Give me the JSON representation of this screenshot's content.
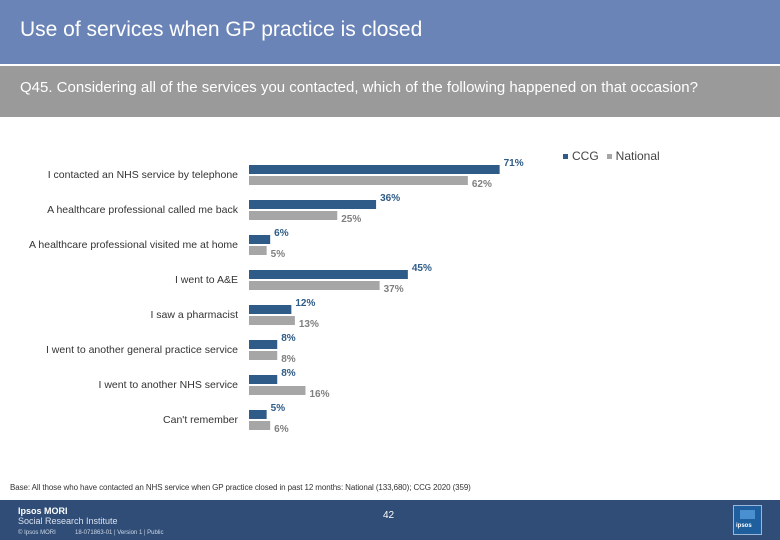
{
  "header": {
    "title": "Use of services when GP practice is closed",
    "question": "Q45. Considering all of the services you contacted, which of the following happened on that occasion?"
  },
  "legend": {
    "items": [
      {
        "label": "CCG",
        "color": "#2e5b87"
      },
      {
        "label": "National",
        "color": "#a6a6a6"
      }
    ]
  },
  "chart_data": {
    "type": "bar",
    "orientation": "horizontal",
    "categories": [
      "I contacted an NHS service by telephone",
      "A healthcare professional called me back",
      "A healthcare professional visited me at home",
      "I went to A&E",
      "I saw a pharmacist",
      "I went to another general practice service",
      "I  went to another NHS service",
      "Can't remember"
    ],
    "series": [
      {
        "name": "CCG",
        "color": "#2e5b87",
        "values": [
          71,
          36,
          6,
          45,
          12,
          8,
          8,
          5
        ]
      },
      {
        "name": "National",
        "color": "#a6a6a6",
        "values": [
          62,
          25,
          5,
          37,
          13,
          8,
          16,
          6
        ]
      }
    ],
    "value_suffix": "%",
    "grid": false,
    "legend_position": "top-right",
    "xlim": [
      0,
      100
    ]
  },
  "footer": {
    "base_note": "Base: All those who have contacted an NHS service when GP practice closed in past 12 months: National (133,680); CCG 2020 (359)",
    "page_number": "42",
    "logo_line1": "Ipsos MORI",
    "logo_line2": "Social Research Institute",
    "copyright": "© Ipsos MORI",
    "job_ref": "18-071863-01 | Version 1 | Public",
    "badge_text": "ipsos"
  }
}
